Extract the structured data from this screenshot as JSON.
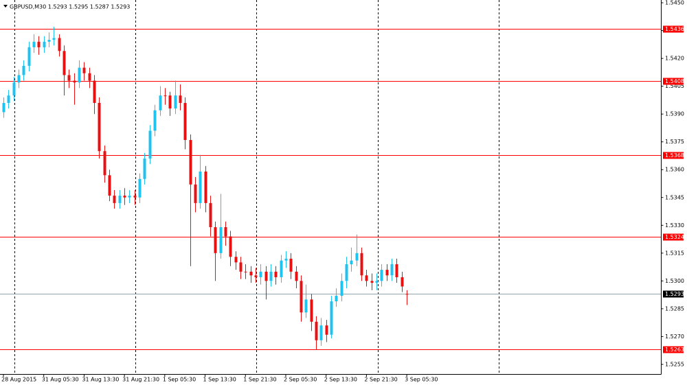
{
  "chart_data": {
    "type": "candlestick",
    "title": "GBPUSD,M30  1.5293 1.5295 1.5287 1.5293",
    "categories": [
      "28 Aug 2015",
      null,
      null,
      null,
      null,
      null,
      null,
      null,
      "31 Aug 05:30",
      null,
      null,
      null,
      null,
      null,
      null,
      null,
      "31 Aug 13:30",
      null,
      null,
      null,
      null,
      null,
      null,
      null,
      "31 Aug 21:30",
      null,
      null,
      null,
      null,
      null,
      null,
      null,
      "1 Sep 05:30",
      null,
      null,
      null,
      null,
      null,
      null,
      null,
      "1 Sep 13:30",
      null,
      null,
      null,
      null,
      null,
      null,
      null,
      "1 Sep 21:30",
      null,
      null,
      null,
      null,
      null,
      null,
      null,
      "2 Sep 05:30",
      null,
      null,
      null,
      null,
      null,
      null,
      null,
      "2 Sep 13:30",
      null,
      null,
      null,
      null,
      null,
      null,
      null,
      "2 Sep 21:30",
      null,
      null,
      null,
      null,
      null,
      null,
      null,
      "3 Sep 05:30"
    ],
    "open": [
      1.5391,
      1.5396,
      1.54,
      1.5407,
      1.5411,
      1.5416,
      1.5426,
      1.5429,
      1.5426,
      1.5429,
      1.543,
      1.5431,
      1.5424,
      1.5411,
      1.5408,
      1.5407,
      1.5415,
      1.5412,
      1.5408,
      1.5396,
      1.537,
      1.5357,
      1.5346,
      1.5342,
      1.5346,
      1.5345,
      1.5346,
      1.5345,
      1.5355,
      1.5366,
      1.5381,
      1.5392,
      1.54,
      1.54,
      1.5393,
      1.54,
      1.5396,
      1.5376,
      1.5352,
      1.5342,
      1.5359,
      1.5342,
      1.5329,
      1.5315,
      1.5329,
      1.5324,
      1.5313,
      1.531,
      1.5305,
      1.5305,
      1.5303,
      1.5302,
      1.5305,
      1.53,
      1.5305,
      1.5302,
      1.5311,
      1.5312,
      1.5305,
      1.53,
      1.5283,
      1.529,
      1.5278,
      1.5268,
      1.5276,
      1.5271,
      1.5289,
      1.5292,
      1.53,
      1.5309,
      1.5311,
      1.5315,
      1.5303,
      1.53,
      1.5299,
      1.53,
      1.5306,
      1.5303,
      1.5309,
      1.5302,
      1.5293
    ],
    "high": [
      1.5399,
      1.5403,
      1.541,
      1.5414,
      1.5419,
      1.5429,
      1.5433,
      1.5432,
      1.5432,
      1.5434,
      1.5437,
      1.5433,
      1.5427,
      1.5414,
      1.5412,
      1.5419,
      1.5418,
      1.5415,
      1.5411,
      1.5399,
      1.5373,
      1.536,
      1.5349,
      1.5349,
      1.535,
      1.5349,
      1.5349,
      1.5358,
      1.5369,
      1.5384,
      1.5395,
      1.5405,
      1.5404,
      1.5402,
      1.5408,
      1.5406,
      1.5399,
      1.5379,
      1.5356,
      1.5368,
      1.5362,
      1.5346,
      1.5332,
      1.5347,
      1.5332,
      1.5327,
      1.5316,
      1.5313,
      1.5309,
      1.5308,
      1.5307,
      1.5309,
      1.5308,
      1.5309,
      1.5308,
      1.5314,
      1.5316,
      1.5315,
      1.5308,
      1.5303,
      1.5298,
      1.5293,
      1.5281,
      1.528,
      1.5279,
      1.5292,
      1.5296,
      1.5304,
      1.5313,
      1.5318,
      1.5325,
      1.5318,
      1.5306,
      1.5304,
      1.5304,
      1.5309,
      1.5309,
      1.5312,
      1.5312,
      1.5305,
      1.5295
    ],
    "low": [
      1.5388,
      1.5393,
      1.5397,
      1.5404,
      1.5408,
      1.5413,
      1.5423,
      1.5422,
      1.5423,
      1.5426,
      1.5427,
      1.5421,
      1.54,
      1.5404,
      1.5395,
      1.5404,
      1.5408,
      1.5404,
      1.539,
      1.5366,
      1.5353,
      1.5343,
      1.5339,
      1.5339,
      1.5341,
      1.5342,
      1.5341,
      1.5342,
      1.5352,
      1.5363,
      1.5378,
      1.5389,
      1.5395,
      1.5389,
      1.539,
      1.5392,
      1.5371,
      1.5308,
      1.5337,
      1.5339,
      1.5337,
      1.5324,
      1.53,
      1.5312,
      1.5319,
      1.5308,
      1.5306,
      1.5301,
      1.5301,
      1.5299,
      1.5299,
      1.5298,
      1.529,
      1.5297,
      1.5298,
      1.5299,
      1.5307,
      1.5301,
      1.5296,
      1.5278,
      1.528,
      1.5273,
      1.5263,
      1.5265,
      1.5267,
      1.5269,
      1.5286,
      1.5289,
      1.5296,
      1.5305,
      1.5308,
      1.53,
      1.5297,
      1.5295,
      1.5295,
      1.5297,
      1.53,
      1.53,
      1.5299,
      1.5294,
      1.5287
    ],
    "close": [
      1.5396,
      1.54,
      1.5407,
      1.5411,
      1.5416,
      1.5426,
      1.5429,
      1.5426,
      1.5429,
      1.543,
      1.5431,
      1.5424,
      1.5411,
      1.5408,
      1.5407,
      1.5415,
      1.5412,
      1.5408,
      1.5396,
      1.537,
      1.5357,
      1.5346,
      1.5342,
      1.5346,
      1.5345,
      1.5346,
      1.5345,
      1.5355,
      1.5366,
      1.5381,
      1.5392,
      1.54,
      1.54,
      1.5393,
      1.54,
      1.5396,
      1.5376,
      1.5352,
      1.5342,
      1.5359,
      1.5342,
      1.5329,
      1.5315,
      1.5329,
      1.5324,
      1.5313,
      1.531,
      1.5305,
      1.5305,
      1.5303,
      1.5302,
      1.5305,
      1.53,
      1.5305,
      1.5302,
      1.5311,
      1.5312,
      1.5305,
      1.53,
      1.5283,
      1.529,
      1.5278,
      1.5268,
      1.5276,
      1.5271,
      1.5289,
      1.5292,
      1.53,
      1.5309,
      1.5311,
      1.5315,
      1.5303,
      1.53,
      1.5299,
      1.53,
      1.5306,
      1.5303,
      1.5309,
      1.5302,
      1.5297,
      1.5293
    ],
    "up_color": "#1ec3ef",
    "down_color": "#e81010",
    "levels": [
      1.5436,
      1.5408,
      1.5368,
      1.5324,
      1.5263
    ],
    "level_color": "#ff0000",
    "last_price": 1.5293,
    "last_price_color": "#8fa3b0",
    "ylim": [
      1.52498,
      1.54515
    ],
    "yticks": [
      1.5255,
      {
        "value": 1.527,
        "label": "1.5270"
      },
      1.5285,
      {
        "value": 1.53,
        "label": "1.5300"
      },
      1.5315,
      {
        "value": 1.533,
        "label": "1.5330"
      },
      1.5345,
      {
        "value": 1.536,
        "label": "1.5360"
      },
      1.5375,
      {
        "value": 1.539,
        "label": "1.5390"
      },
      {
        "value": 1.5405,
        "label": "1.5405"
      },
      {
        "value": 1.542,
        "label": "1.5420"
      },
      1.5435,
      {
        "value": 1.545,
        "label": "1.5450"
      }
    ]
  }
}
